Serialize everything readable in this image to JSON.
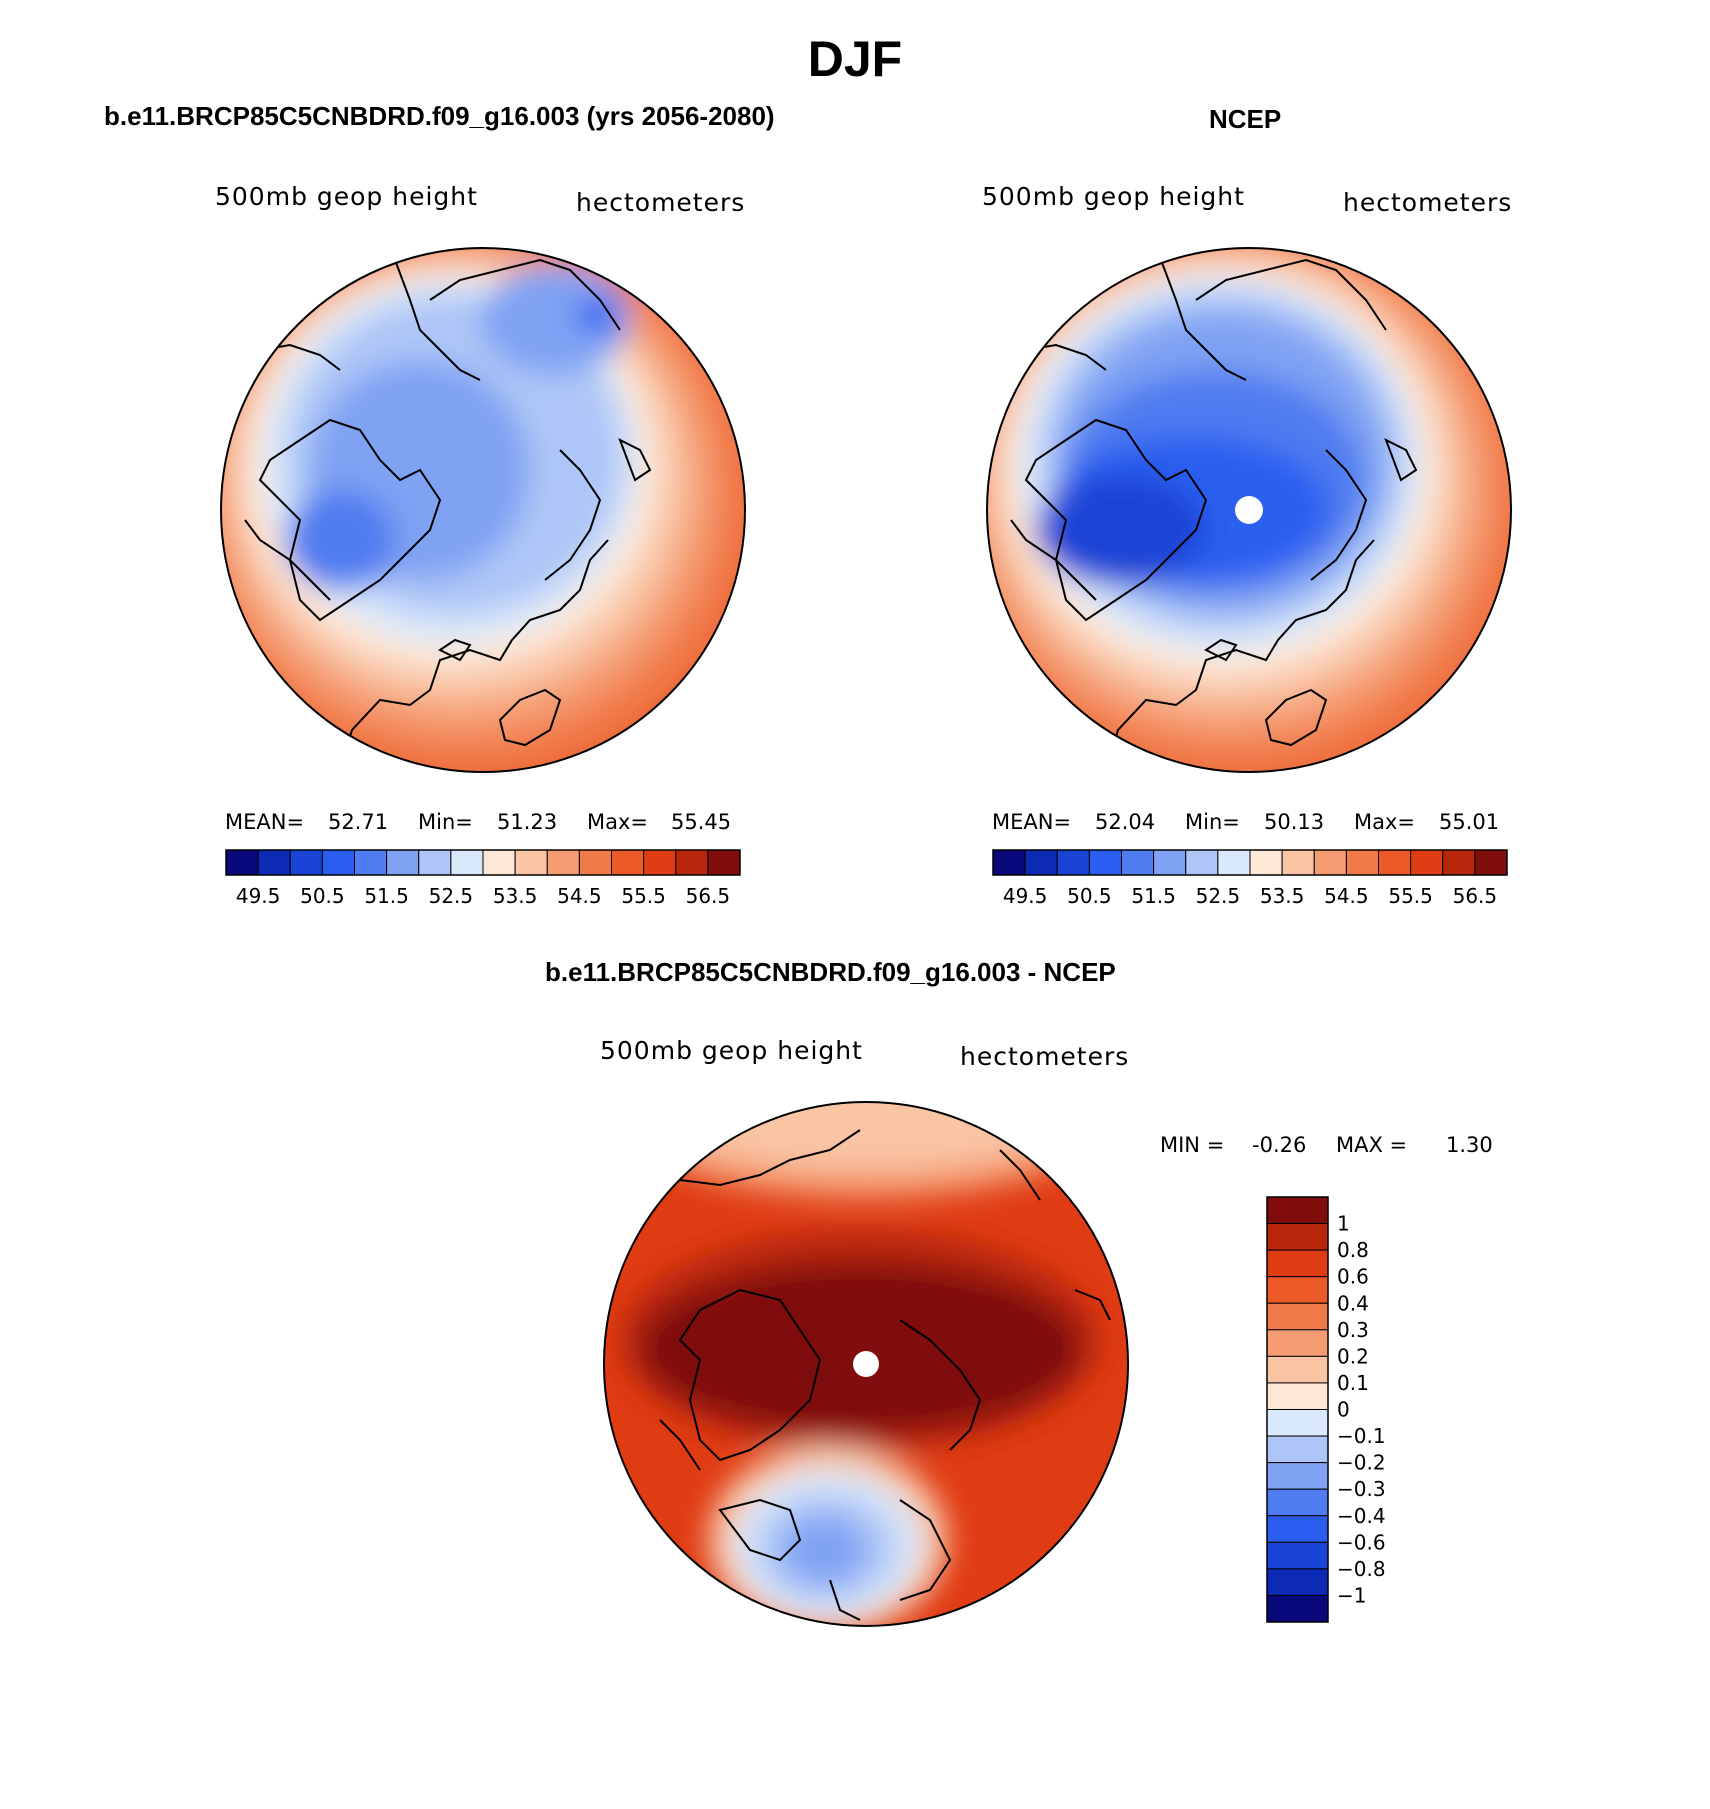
{
  "figure": {
    "title": "DJF"
  },
  "palettes": {
    "absolute": [
      "#08087a",
      "#0c2ab4",
      "#1a44d6",
      "#2b5ef0",
      "#4f7cf0",
      "#7fa2f3",
      "#aec6f7",
      "#d9e8fa",
      "#fde8d8",
      "#f9c5a5",
      "#f59c72",
      "#f17a4a",
      "#ec5a29",
      "#e03c14",
      "#b8260c",
      "#7f0d0b"
    ],
    "difference": [
      "#08087a",
      "#0c2ab4",
      "#1a44d6",
      "#2b5ef0",
      "#4f7cf0",
      "#7fa2f3",
      "#aec6f7",
      "#d9e8fa",
      "#fde8d8",
      "#f9c5a5",
      "#f59c72",
      "#f17a4a",
      "#ec5a29",
      "#e03c14",
      "#b8260c",
      "#7f0d0b"
    ]
  },
  "chart_data": [
    {
      "type": "heatmap",
      "title": "b.e11.BRCP85C5CNBDRD.f09_g16.003 (yrs 2056-2080)",
      "variable_label": "500mb geop height",
      "units_label": "hectometers",
      "projection": "north polar stereographic",
      "stats": {
        "mean_label": "MEAN=",
        "mean": "52.71",
        "min_label": "Min=",
        "min": "51.23",
        "max_label": "Max=",
        "max": "55.45"
      },
      "colorbar": {
        "orientation": "horizontal",
        "levels": [
          49.5,
          50,
          50.5,
          51,
          51.5,
          52,
          52.5,
          53,
          53.5,
          54,
          54.5,
          55,
          55.5,
          56,
          56.5
        ],
        "tick_labels": [
          "49.5",
          "50.5",
          "51.5",
          "52.5",
          "53.5",
          "54.5",
          "55.5",
          "56.5"
        ]
      }
    },
    {
      "type": "heatmap",
      "title": "NCEP",
      "variable_label": "500mb geop height",
      "units_label": "hectometers",
      "projection": "north polar stereographic",
      "stats": {
        "mean_label": "MEAN=",
        "mean": "52.04",
        "min_label": "Min=",
        "min": "50.13",
        "max_label": "Max=",
        "max": "55.01"
      },
      "colorbar": {
        "orientation": "horizontal",
        "levels": [
          49.5,
          50,
          50.5,
          51,
          51.5,
          52,
          52.5,
          53,
          53.5,
          54,
          54.5,
          55,
          55.5,
          56,
          56.5
        ],
        "tick_labels": [
          "49.5",
          "50.5",
          "51.5",
          "52.5",
          "53.5",
          "54.5",
          "55.5",
          "56.5"
        ]
      }
    },
    {
      "type": "heatmap",
      "title": "b.e11.BRCP85C5CNBDRD.f09_g16.003 - NCEP",
      "variable_label": "500mb geop height",
      "units_label": "hectometers",
      "projection": "north polar stereographic",
      "stats": {
        "min_label": "MIN =",
        "min": "-0.26",
        "max_label": "MAX =",
        "max": "1.30"
      },
      "colorbar": {
        "orientation": "vertical",
        "levels": [
          1,
          0.8,
          0.6,
          0.4,
          0.3,
          0.2,
          0.1,
          0,
          -0.1,
          -0.2,
          -0.3,
          -0.4,
          -0.6,
          -0.8,
          -1
        ],
        "tick_labels": [
          "1",
          "0.8",
          "0.6",
          "0.4",
          "0.3",
          "0.2",
          "0.1",
          "0",
          "−0.1",
          "−0.2",
          "−0.3",
          "−0.4",
          "−0.6",
          "−0.8",
          "−1"
        ]
      }
    }
  ]
}
